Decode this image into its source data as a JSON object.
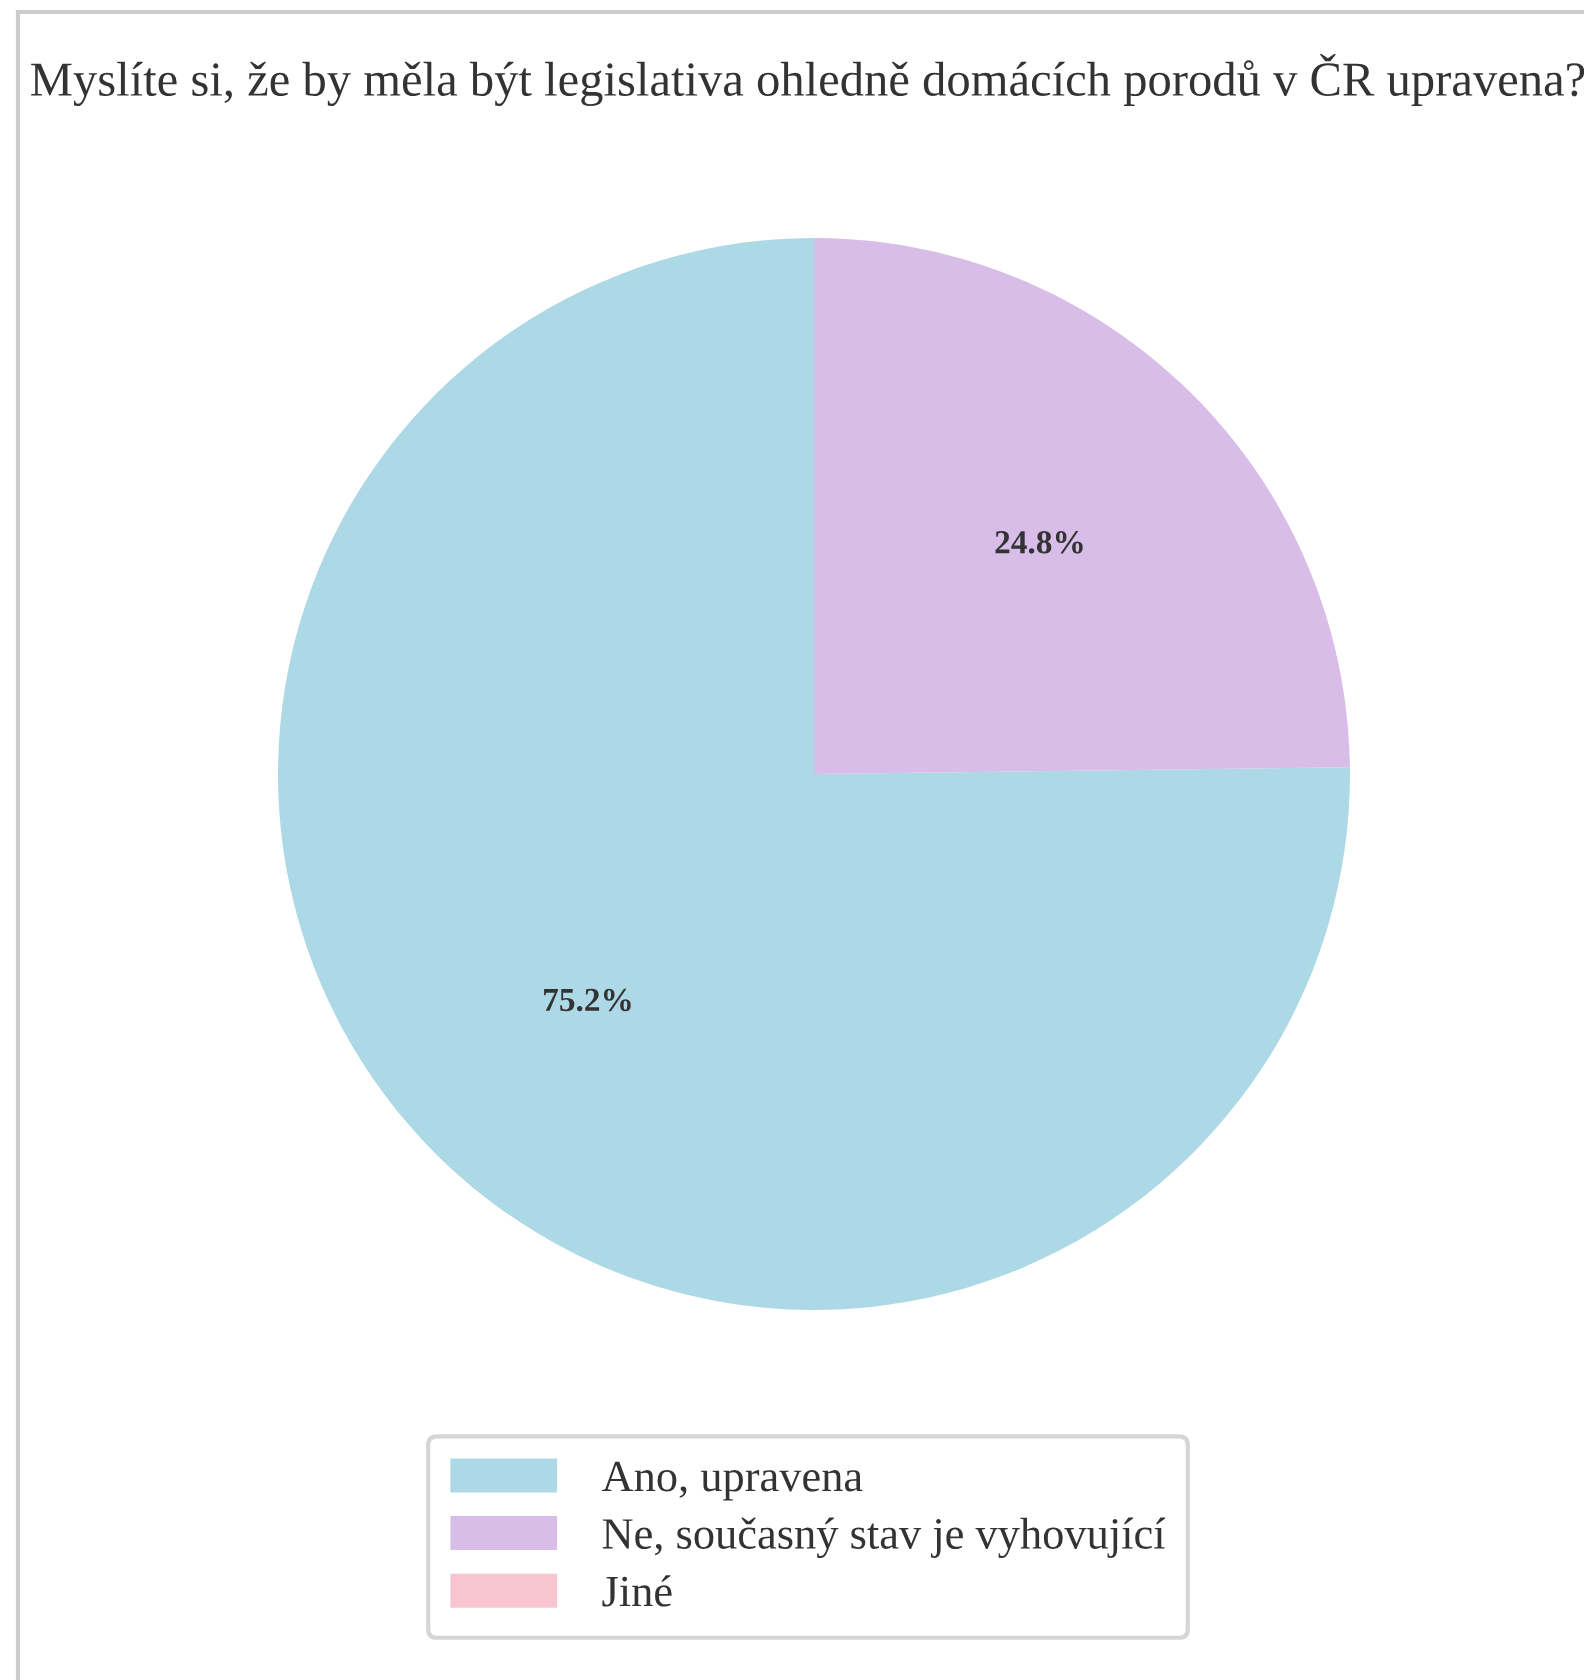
{
  "chart_data": {
    "type": "pie",
    "title": "Myslíte si, že by měla být legislativa ohledně domácích porodů v ČR upravena?",
    "categories": [
      "Ano, upravena",
      "Ne, současný stav je vyhovující",
      "Jiné"
    ],
    "values": [
      75.2,
      24.8,
      0
    ],
    "colors": [
      "#add8e6",
      "#d8bde8",
      "#f8c4d0"
    ],
    "value_labels": [
      "75.2%",
      "24.8%",
      null
    ],
    "legend": "bottom"
  }
}
